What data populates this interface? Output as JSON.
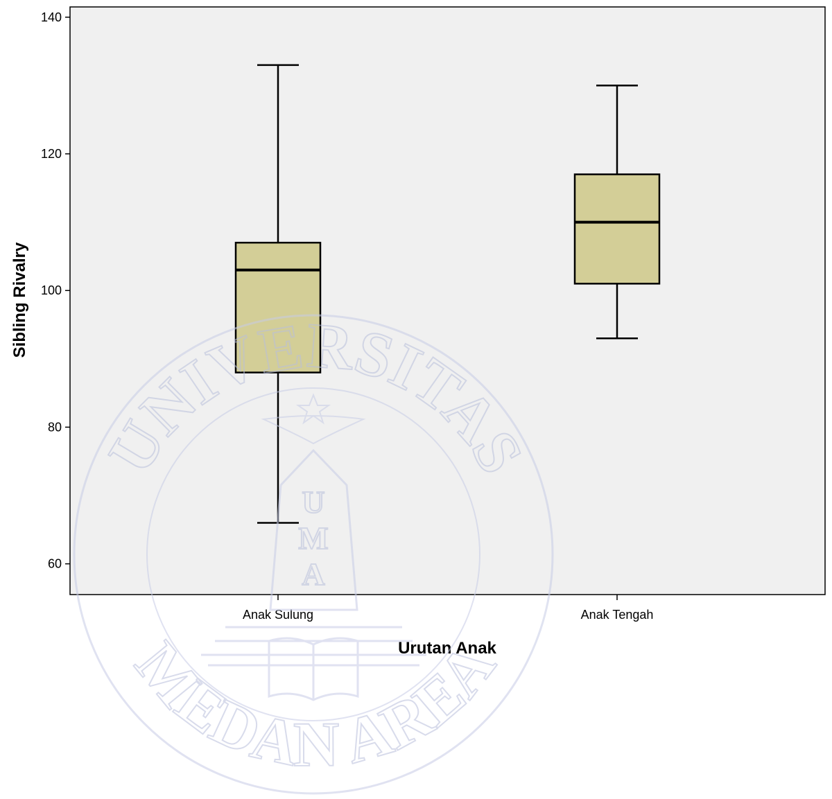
{
  "chart_data": {
    "type": "boxplot",
    "title": "",
    "xlabel": "Urutan Anak",
    "ylabel": "Sibling Rivalry",
    "ylim": [
      55.5,
      141.5
    ],
    "yticks": [
      60,
      80,
      100,
      120,
      140
    ],
    "grid": false,
    "categories": [
      "Anak Sulung",
      "Anak Tengah"
    ],
    "boxes": [
      {
        "category": "Anak Sulung",
        "min": 66,
        "q1": 88,
        "median": 103,
        "q3": 107,
        "max": 133
      },
      {
        "category": "Anak Tengah",
        "min": 93,
        "q1": 101,
        "median": 110,
        "q3": 117,
        "max": 130
      }
    ],
    "colors": {
      "plot_bg": "#f0f0f0",
      "box_fill": "#d3ce97",
      "line": "#000000"
    }
  },
  "watermark": {
    "top_text": "UNIVERSITAS",
    "bottom_text": "MEDAN AREA",
    "emblem_letters": [
      "U",
      "M",
      "A"
    ],
    "color": "#c3c8e4"
  }
}
